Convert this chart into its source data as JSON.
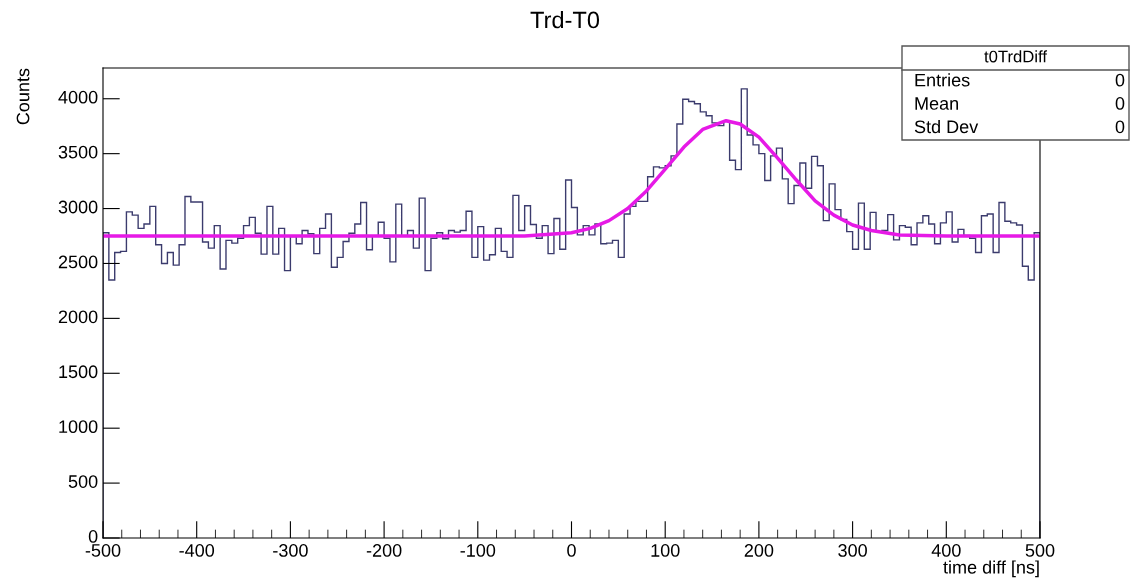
{
  "chart_data": {
    "type": "histogram",
    "title": "Trd-T0",
    "xlabel": "time diff [ns]",
    "ylabel": "Counts",
    "color": "#3b3b6d",
    "bins": [
      -500,
      -493.75,
      -487.5,
      -481.25,
      -475,
      -468.75,
      -462.5,
      -456.25,
      -450,
      -443.75,
      -437.5,
      -431.25,
      -425,
      -418.75,
      -412.5,
      -406.25,
      -400,
      -393.75,
      -387.5,
      -381.25,
      -375,
      -368.75,
      -362.5,
      -356.25,
      -350,
      -343.75,
      -337.5,
      -331.25,
      -325,
      -318.75,
      -312.5,
      -306.25,
      -300,
      -293.75,
      -287.5,
      -281.25,
      -275,
      -268.75,
      -262.5,
      -256.25,
      -250,
      -243.75,
      -237.5,
      -231.25,
      -225,
      -218.75,
      -212.5,
      -206.25,
      -200,
      -193.75,
      -187.5,
      -181.25,
      -175,
      -168.75,
      -162.5,
      -156.25,
      -150,
      -143.75,
      -137.5,
      -131.25,
      -125,
      -118.75,
      -112.5,
      -106.25,
      -100,
      -93.75,
      -87.5,
      -81.25,
      -75,
      -68.75,
      -62.5,
      -56.25,
      -50,
      -43.75,
      -37.5,
      -31.25,
      -25,
      -18.75,
      -12.5,
      -6.25,
      0,
      6.25,
      12.5,
      18.75,
      25,
      31.25,
      37.5,
      43.75,
      50,
      56.25,
      62.5,
      68.75,
      75,
      81.25,
      87.5,
      93.75,
      100,
      106.25,
      112.5,
      118.75,
      125,
      131.25,
      137.5,
      143.75,
      150,
      156.25,
      162.5,
      168.75,
      175,
      181.25,
      187.5,
      193.75,
      200,
      206.25,
      212.5,
      218.75,
      225,
      231.25,
      237.5,
      243.75,
      250,
      256.25,
      262.5,
      268.75,
      275,
      281.25,
      287.5,
      293.75,
      300,
      306.25,
      312.5,
      318.75,
      325,
      331.25,
      337.5,
      343.75,
      350,
      356.25,
      362.5,
      368.75,
      375,
      381.25,
      387.5,
      393.75,
      400,
      406.25,
      412.5,
      418.75,
      425,
      431.25,
      437.5,
      443.75,
      450,
      456.25,
      462.5,
      468.75,
      475,
      481.25,
      487.5,
      493.75,
      500
    ],
    "values": [
      2780,
      2350,
      2600,
      2610,
      2970,
      2940,
      2820,
      2860,
      3020,
      2670,
      2500,
      2600,
      2485,
      2670,
      3110,
      3060,
      3060,
      2695,
      2640,
      2845,
      2450,
      2710,
      2685,
      2730,
      2845,
      2920,
      2775,
      2585,
      3020,
      2585,
      2820,
      2435,
      2745,
      2680,
      2800,
      2770,
      2590,
      2820,
      2950,
      2465,
      2555,
      2700,
      2775,
      2860,
      3055,
      2625,
      2750,
      2875,
      2730,
      2515,
      3040,
      2750,
      2800,
      2640,
      3095,
      2435,
      2730,
      2780,
      2725,
      2800,
      2785,
      2800,
      2975,
      2555,
      2835,
      2530,
      2580,
      2820,
      2610,
      2555,
      3120,
      2800,
      3025,
      2855,
      2730,
      2845,
      2590,
      2910,
      2630,
      3260,
      3010,
      2760,
      2845,
      2760,
      2860,
      2680,
      2685,
      2710,
      2555,
      2950,
      3020,
      3065,
      3065,
      3290,
      3380,
      3370,
      3390,
      3480,
      3770,
      3995,
      3975,
      3955,
      3880,
      3845,
      3780,
      3755,
      3795,
      3440,
      3355,
      4090,
      3670,
      3580,
      3500,
      3255,
      3480,
      3550,
      3270,
      3045,
      3210,
      3415,
      3185,
      3475,
      3390,
      2890,
      3225,
      2990,
      2900,
      2790,
      2630,
      3050,
      2630,
      2965,
      2790,
      2800,
      2945,
      2715,
      2845,
      2830,
      2670,
      2870,
      2935,
      2860,
      2680,
      2870,
      2970,
      2695,
      2810,
      2755,
      2730,
      2600,
      2935,
      2950,
      2600,
      3055,
      2885,
      2870,
      2850,
      2475,
      2350,
      2780
    ],
    "series": [
      {
        "type": "line",
        "color": "#e619e6",
        "x": [
          -500,
          -100,
          -50,
          0,
          20,
          40,
          60,
          80,
          100,
          120,
          140,
          165,
          180,
          200,
          220,
          240,
          260,
          280,
          300,
          320,
          350,
          400,
          500
        ],
        "values": [
          2750,
          2750,
          2750,
          2780,
          2820,
          2890,
          3000,
          3160,
          3360,
          3560,
          3720,
          3800,
          3770,
          3650,
          3460,
          3260,
          3070,
          2940,
          2850,
          2800,
          2760,
          2750,
          2750
        ]
      }
    ],
    "xlim": [
      -500,
      500
    ],
    "xticks": [
      -500,
      -400,
      -300,
      -200,
      -100,
      0,
      100,
      200,
      300,
      400,
      500
    ],
    "ylim": [
      0,
      4280
    ],
    "yticks": [
      0,
      500,
      1000,
      1500,
      2000,
      2500,
      3000,
      3500,
      4000
    ],
    "grid": false,
    "annotations": [
      "t0TrdDiff",
      "Entries",
      "0",
      "Mean",
      "0",
      "Std Dev",
      "0"
    ]
  }
}
